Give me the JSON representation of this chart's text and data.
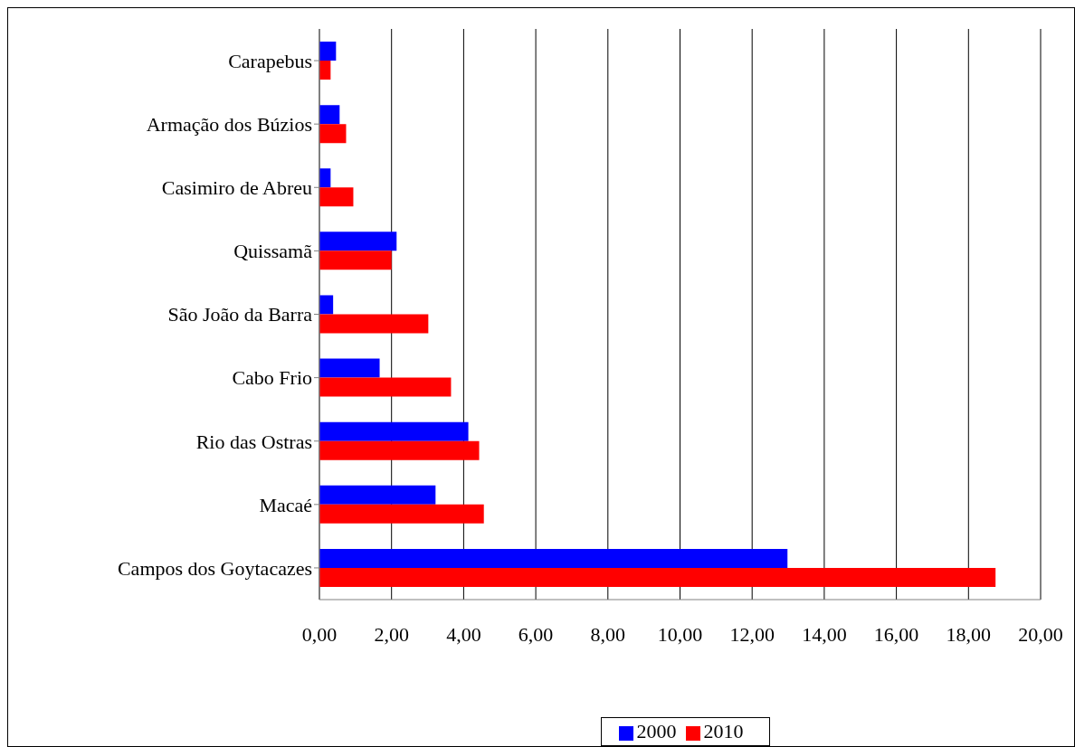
{
  "chart_data": {
    "type": "bar",
    "orientation": "horizontal",
    "categories": [
      "Carapebus",
      "Armação dos Búzios",
      "Casimiro de Abreu",
      "Quissamã",
      "São João da Barra",
      "Cabo Frio",
      "Rio das Ostras",
      "Macaé",
      "Campos dos Goytacazes"
    ],
    "series": [
      {
        "name": "2000",
        "color": "#0000ff",
        "values": [
          0.46,
          0.56,
          0.31,
          2.14,
          0.38,
          1.67,
          4.13,
          3.22,
          12.98
        ]
      },
      {
        "name": "2010",
        "color": "#ff0000",
        "values": [
          0.31,
          0.74,
          0.94,
          2.0,
          3.02,
          3.65,
          4.43,
          4.56,
          18.75
        ]
      }
    ],
    "xlim": [
      0,
      20
    ],
    "xticks": [
      {
        "value": 0,
        "label": "0,00"
      },
      {
        "value": 2,
        "label": "2,00"
      },
      {
        "value": 4,
        "label": "4,00"
      },
      {
        "value": 6,
        "label": "6,00"
      },
      {
        "value": 8,
        "label": "8,00"
      },
      {
        "value": 10,
        "label": "10,00"
      },
      {
        "value": 12,
        "label": "12,00"
      },
      {
        "value": 14,
        "label": "14,00"
      },
      {
        "value": 16,
        "label": "16,00"
      },
      {
        "value": 18,
        "label": "18,00"
      },
      {
        "value": 20,
        "label": "20,00"
      }
    ],
    "grid": "x",
    "legend": "bottom"
  }
}
